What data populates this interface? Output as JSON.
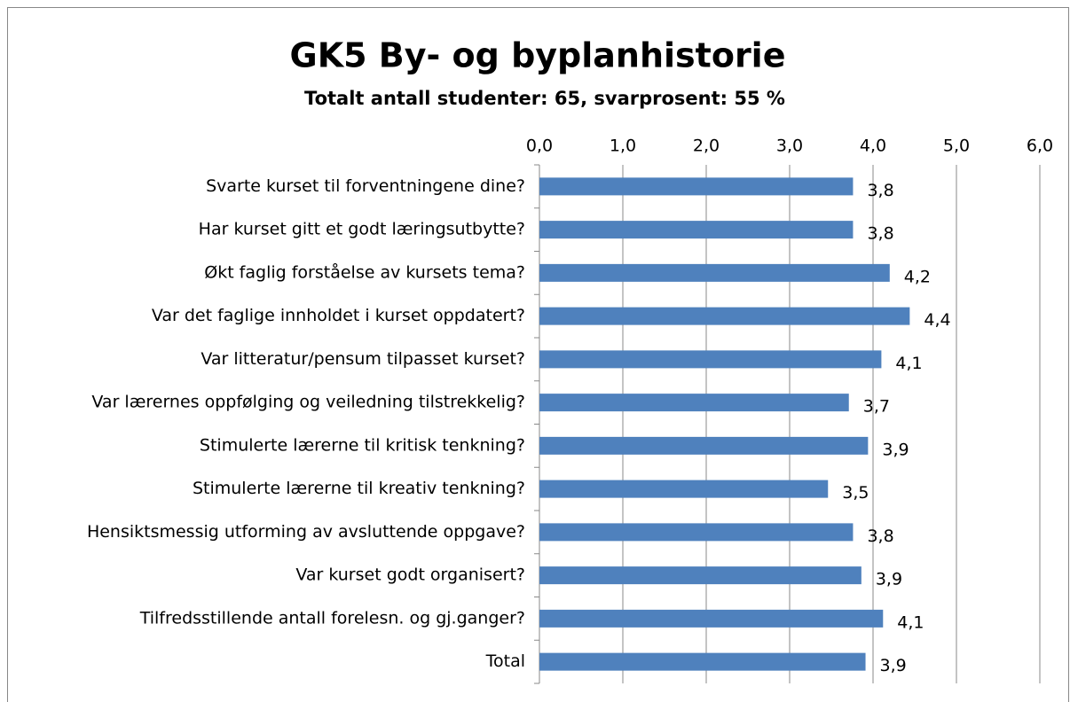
{
  "chart_data": {
    "type": "barh",
    "title": "GK5 By- og byplanhistorie",
    "subtitle": "Totalt antall studenter: 65, svarprosent: 55 %",
    "categories": [
      "Svarte kurset til forventningene dine?",
      "Har kurset gitt et godt læringsutbytte?",
      "Økt faglig forståelse av kursets tema?",
      "Var det faglige innholdet i kurset oppdatert?",
      "Var litteratur/pensum tilpasset kurset?",
      "Var lærernes oppfølging og veiledning tilstrekkelig?",
      "Stimulerte lærerne til kritisk tenkning?",
      "Stimulerte lærerne til kreativ tenkning?",
      "Hensiktsmessig utforming av avsluttende oppgave?",
      "Var kurset godt organisert?",
      "Tilfredsstillende antall forelesn. og gj.ganger?",
      "Total"
    ],
    "values": [
      3.76,
      3.76,
      4.2,
      4.44,
      4.1,
      3.71,
      3.94,
      3.46,
      3.76,
      3.86,
      4.12,
      3.91
    ],
    "value_labels": [
      "3,8",
      "3,8",
      "4,2",
      "4,4",
      "4,1",
      "3,7",
      "3,9",
      "3,5",
      "3,8",
      "3,9",
      "4,1",
      "3,9"
    ],
    "color": "#4f81bd",
    "xlim": [
      0,
      6
    ],
    "xticks": [
      {
        "value": 0,
        "label": "0,0"
      },
      {
        "value": 1,
        "label": "1,0"
      },
      {
        "value": 2,
        "label": "2,0"
      },
      {
        "value": 3,
        "label": "3,0"
      },
      {
        "value": 4,
        "label": "4,0"
      },
      {
        "value": 5,
        "label": "5,0"
      },
      {
        "value": 6,
        "label": "6,0"
      }
    ],
    "grid": true
  }
}
